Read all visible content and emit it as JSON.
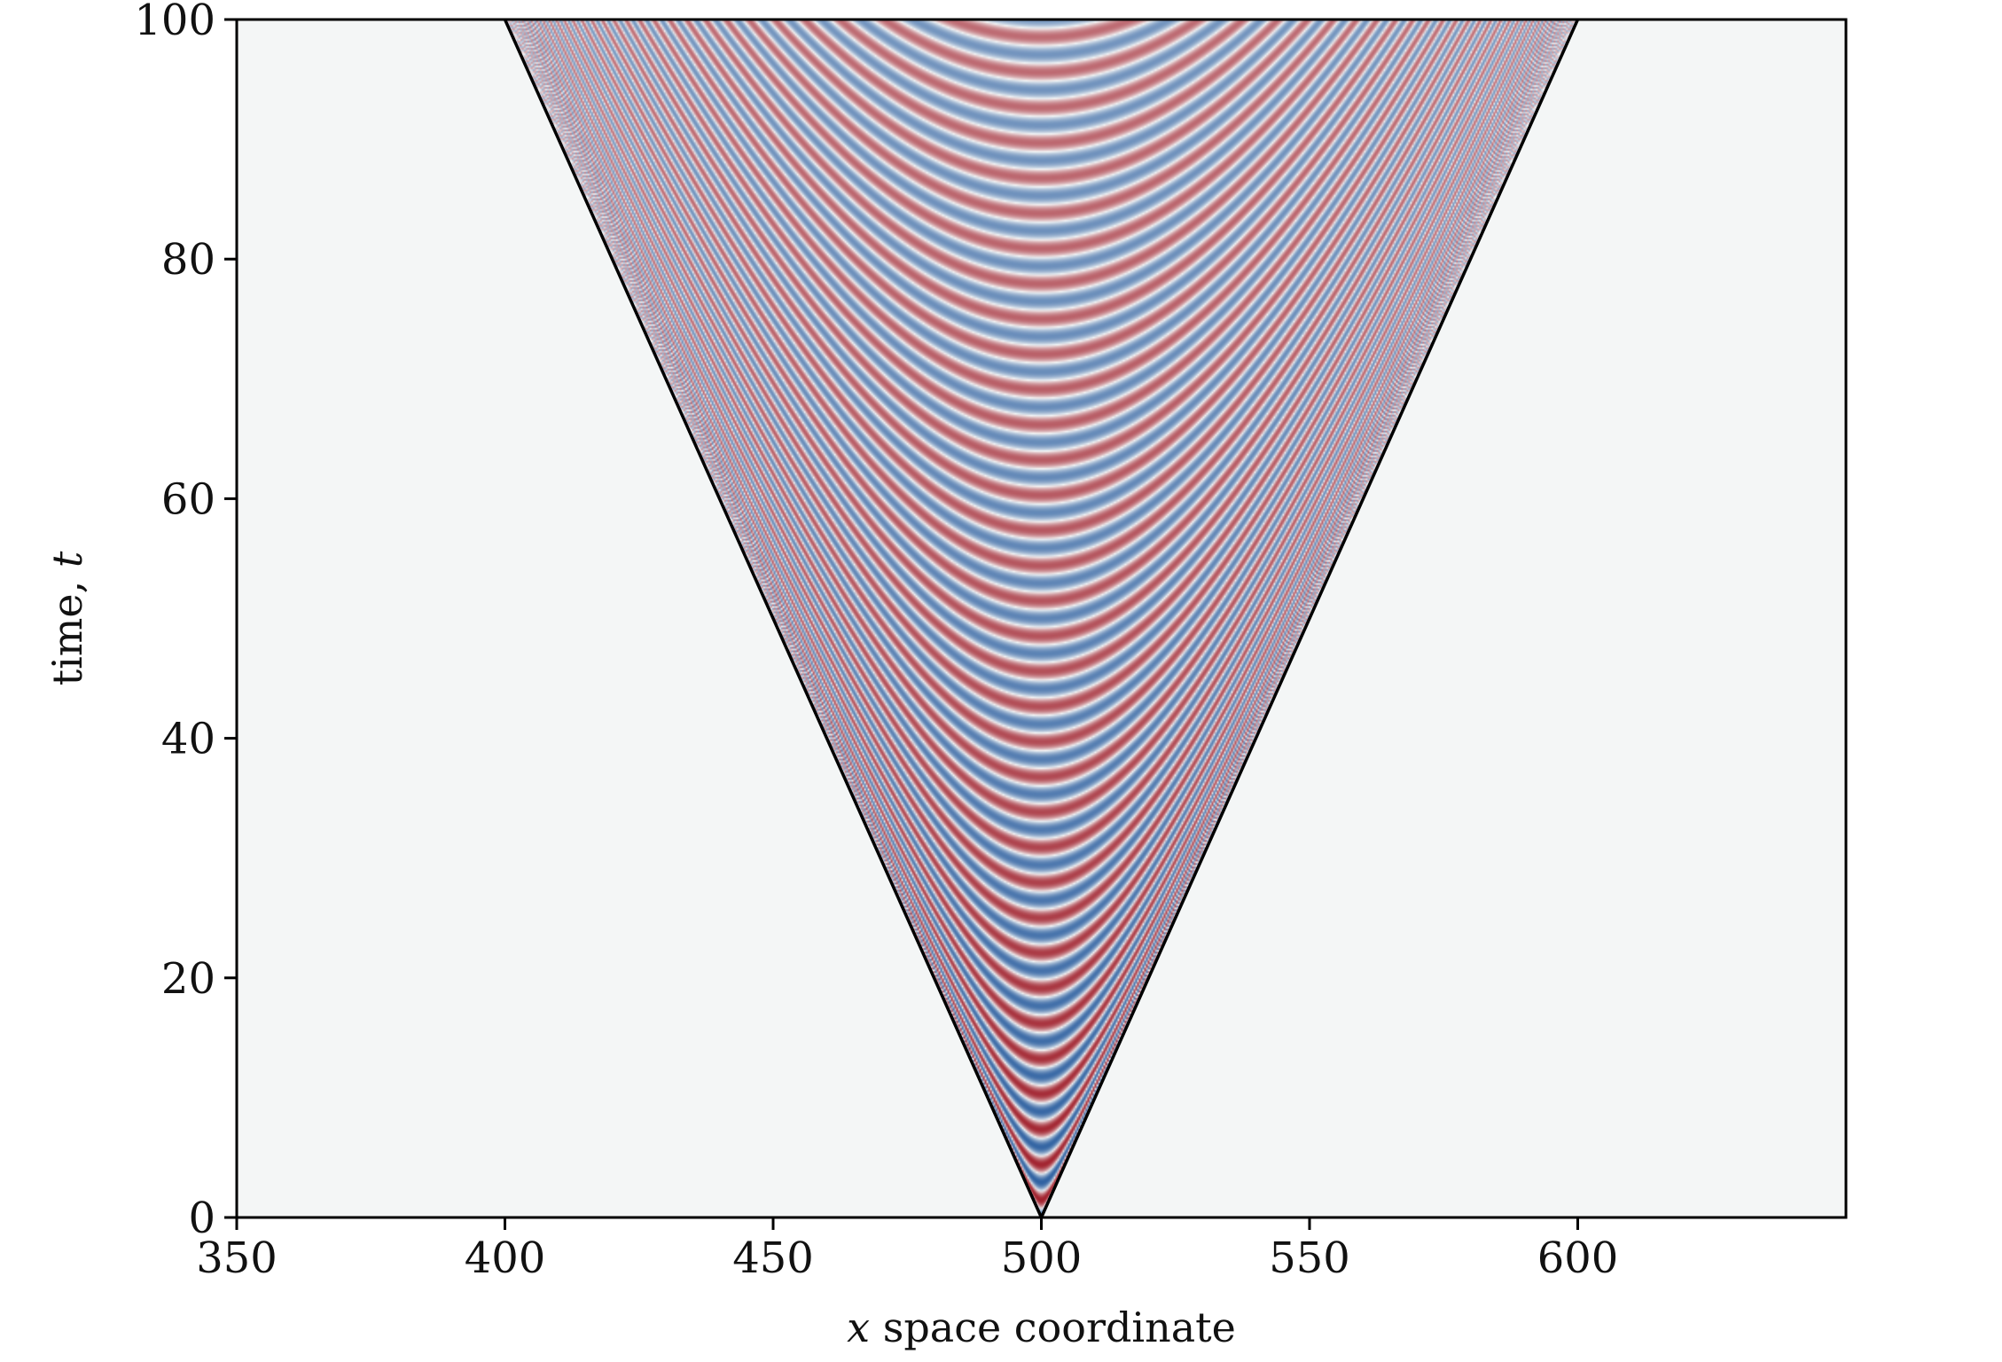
{
  "chart_data": {
    "type": "heatmap",
    "title": "",
    "xlabel": {
      "var": "x",
      "text": " space coordinate"
    },
    "ylabel": {
      "text": "time, ",
      "var": "t"
    },
    "xlim": [
      350,
      650
    ],
    "ylim": [
      0,
      100
    ],
    "x_ticks": [
      350,
      400,
      450,
      500,
      550,
      600
    ],
    "x_tick_labels": [
      "350",
      "400",
      "450",
      "500",
      "550",
      "600"
    ],
    "y_ticks": [
      0,
      20,
      40,
      60,
      80,
      100
    ],
    "y_tick_labels": [
      "0",
      "20",
      "40",
      "60",
      "80",
      "100"
    ],
    "grid": false,
    "colormap": "RdBu",
    "colors": {
      "negative": "#2c5fa0",
      "positive": "#a01e2a",
      "zero": "#f4f6f6"
    },
    "source_x": 500,
    "front_speed": 1,
    "fringe_count_at_t100": 34,
    "cone_lines": [
      {
        "x": [
          500,
          400
        ],
        "t": [
          0,
          100
        ]
      },
      {
        "x": [
          500,
          600
        ],
        "t": [
          0,
          100
        ]
      }
    ]
  }
}
